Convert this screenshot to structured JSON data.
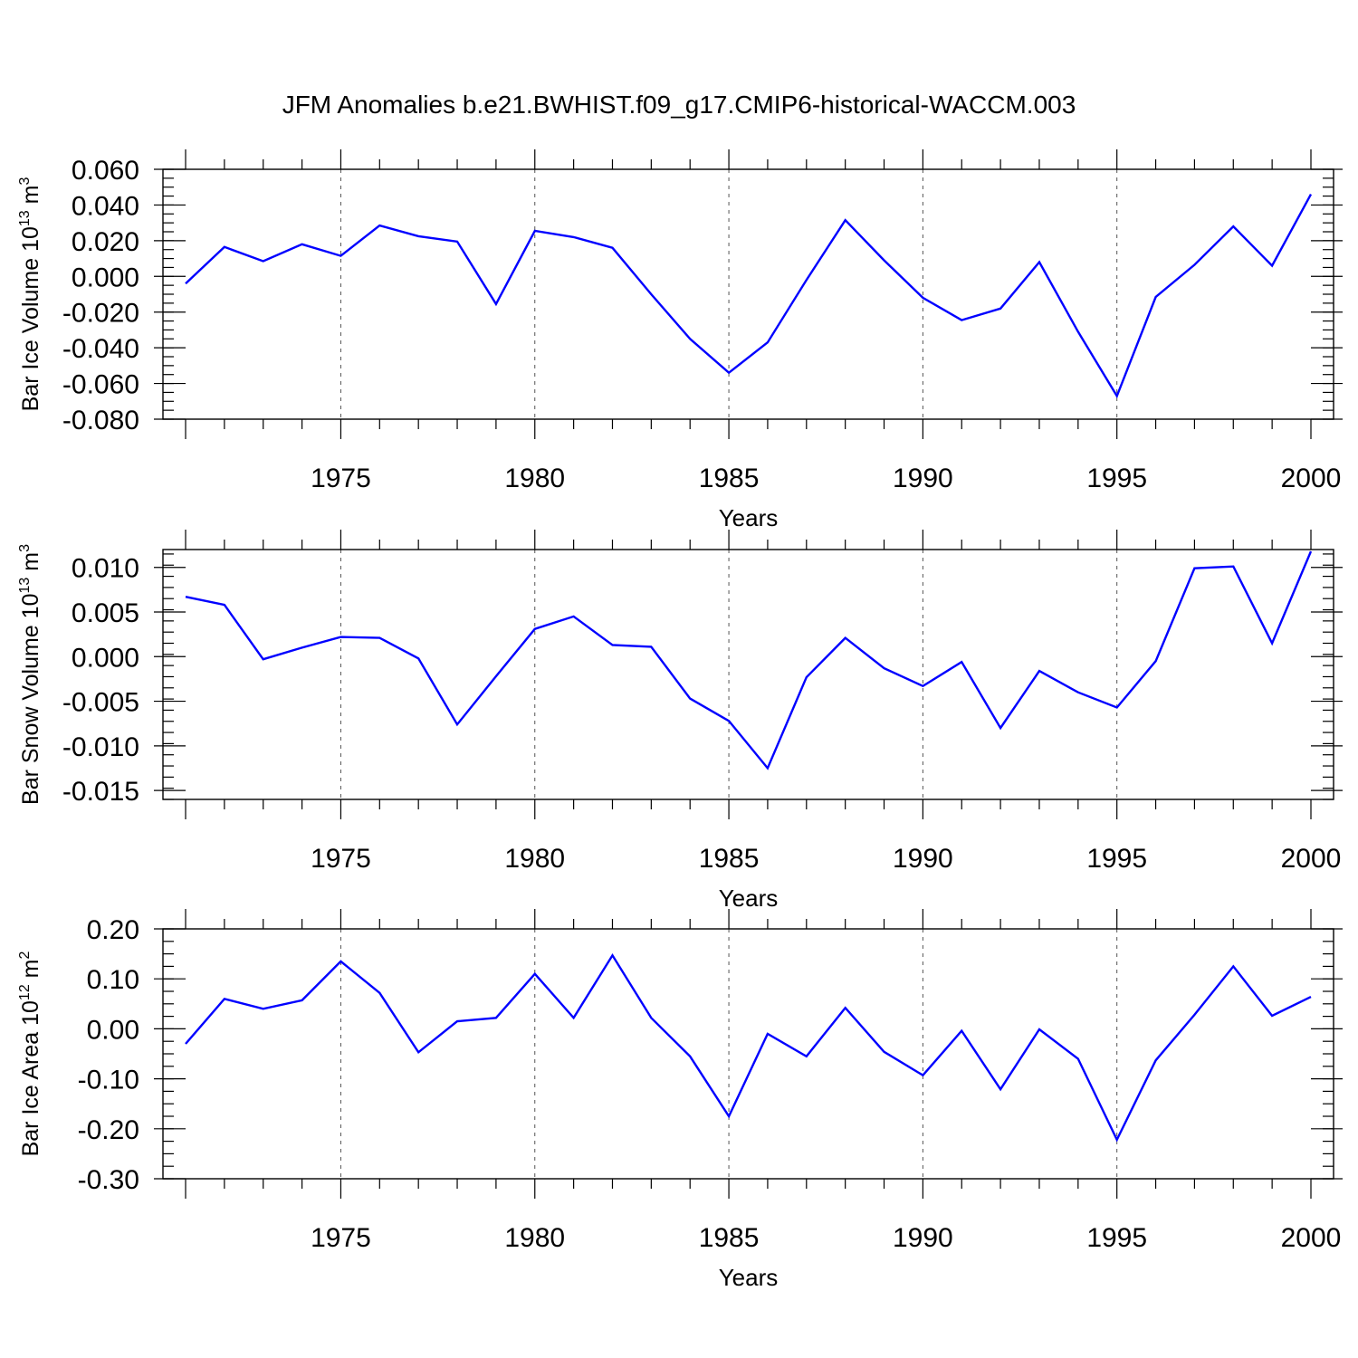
{
  "title": "JFM Anomalies b.e21.BWHIST.f09_g17.CMIP6-historical-WACCM.003",
  "chart_data": [
    {
      "type": "line",
      "ylabel_main": "Bar Ice Volume 10",
      "ylabel_exp": "13",
      "ylabel_unit": " m",
      "ylabel_unit_exp": "3",
      "xlabel": "Years",
      "xlim": [
        1971,
        2000
      ],
      "ylim": [
        -0.08,
        0.06
      ],
      "x_ticks": [
        1975,
        1980,
        1985,
        1990,
        1995,
        2000
      ],
      "x_tick_labels": [
        "1975",
        "1980",
        "1985",
        "1990",
        "1995",
        "2000"
      ],
      "y_ticks": [
        0.06,
        0.04,
        0.02,
        0.0,
        -0.02,
        -0.04,
        -0.06,
        -0.08
      ],
      "y_tick_labels": [
        "0.060",
        "0.040",
        "0.020",
        "0.000",
        "-0.020",
        "-0.040",
        "-0.060",
        "-0.080"
      ],
      "grid": "dashed vertical at major x ticks",
      "color": "#0000ff",
      "x": [
        1971,
        1972,
        1973,
        1974,
        1975,
        1976,
        1977,
        1978,
        1979,
        1980,
        1981,
        1982,
        1983,
        1984,
        1985,
        1986,
        1987,
        1988,
        1989,
        1990,
        1991,
        1992,
        1993,
        1994,
        1995,
        1996,
        1997,
        1998,
        1999,
        2000
      ],
      "values": [
        -0.004,
        0.0165,
        0.0085,
        0.018,
        0.0115,
        0.0285,
        0.0225,
        0.0195,
        -0.0155,
        0.0255,
        0.022,
        0.016,
        -0.01,
        -0.035,
        -0.054,
        -0.037,
        -0.002,
        0.0315,
        0.009,
        -0.012,
        -0.0245,
        -0.018,
        0.008,
        -0.031,
        -0.067,
        -0.0115,
        0.0065,
        0.028,
        0.006,
        0.046
      ]
    },
    {
      "type": "line",
      "ylabel_main": "Bar Snow Volume 10",
      "ylabel_exp": "13",
      "ylabel_unit": " m",
      "ylabel_unit_exp": "3",
      "xlabel": "Years",
      "xlim": [
        1971,
        2000
      ],
      "ylim": [
        -0.016,
        0.012
      ],
      "x_ticks": [
        1975,
        1980,
        1985,
        1990,
        1995,
        2000
      ],
      "x_tick_labels": [
        "1975",
        "1980",
        "1985",
        "1990",
        "1995",
        "2000"
      ],
      "y_ticks": [
        0.01,
        0.005,
        0.0,
        -0.005,
        -0.01,
        -0.015
      ],
      "y_tick_labels": [
        "0.010",
        "0.005",
        "0.000",
        "-0.005",
        "-0.010",
        "-0.015"
      ],
      "grid": "dashed vertical at major x ticks",
      "color": "#0000ff",
      "x": [
        1971,
        1972,
        1973,
        1974,
        1975,
        1976,
        1977,
        1978,
        1979,
        1980,
        1981,
        1982,
        1983,
        1984,
        1985,
        1986,
        1987,
        1988,
        1989,
        1990,
        1991,
        1992,
        1993,
        1994,
        1995,
        1996,
        1997,
        1998,
        1999,
        2000
      ],
      "values": [
        0.0067,
        0.0058,
        -0.0003,
        0.001,
        0.0022,
        0.0021,
        -0.0002,
        -0.0076,
        -0.0022,
        0.0031,
        0.0045,
        0.0013,
        0.0011,
        -0.0047,
        -0.0072,
        -0.0125,
        -0.0023,
        0.0021,
        -0.0013,
        -0.0033,
        -0.0006,
        -0.008,
        -0.0016,
        -0.004,
        -0.0057,
        -0.0005,
        0.0099,
        0.0101,
        0.0015,
        0.0118
      ]
    },
    {
      "type": "line",
      "ylabel_main": "Bar Ice Area 10",
      "ylabel_exp": "12",
      "ylabel_unit": " m",
      "ylabel_unit_exp": "2",
      "xlabel": "Years",
      "xlim": [
        1971,
        2000
      ],
      "ylim": [
        -0.3,
        0.2
      ],
      "x_ticks": [
        1975,
        1980,
        1985,
        1990,
        1995,
        2000
      ],
      "x_tick_labels": [
        "1975",
        "1980",
        "1985",
        "1990",
        "1995",
        "2000"
      ],
      "y_ticks": [
        0.2,
        0.1,
        0.0,
        -0.1,
        -0.2,
        -0.3
      ],
      "y_tick_labels": [
        "0.20",
        "0.10",
        "0.00",
        "-0.10",
        "-0.20",
        "-0.30"
      ],
      "grid": "dashed vertical at major x ticks",
      "color": "#0000ff",
      "x": [
        1971,
        1972,
        1973,
        1974,
        1975,
        1976,
        1977,
        1978,
        1979,
        1980,
        1981,
        1982,
        1983,
        1984,
        1985,
        1986,
        1987,
        1988,
        1989,
        1990,
        1991,
        1992,
        1993,
        1994,
        1995,
        1996,
        1997,
        1998,
        1999,
        2000
      ],
      "values": [
        -0.03,
        0.06,
        0.04,
        0.057,
        0.135,
        0.072,
        -0.047,
        0.015,
        0.022,
        0.11,
        0.022,
        0.147,
        0.022,
        -0.055,
        -0.175,
        -0.01,
        -0.055,
        0.042,
        -0.046,
        -0.093,
        -0.004,
        -0.121,
        -0.001,
        -0.06,
        -0.222,
        -0.063,
        0.028,
        0.125,
        0.026,
        0.064
      ]
    }
  ]
}
